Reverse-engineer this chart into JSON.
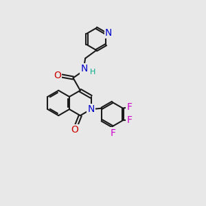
{
  "bg_color": "#e8e8e8",
  "bond_color": "#1a1a1a",
  "bond_width": 1.5,
  "dbo": 0.07,
  "atom_colors": {
    "N": "#0000cc",
    "O": "#cc0000",
    "F": "#cc00cc",
    "H": "#00aa88",
    "C": "#1a1a1a"
  },
  "fs": 9,
  "fig_width": 3.0,
  "fig_height": 3.0,
  "dpi": 100
}
